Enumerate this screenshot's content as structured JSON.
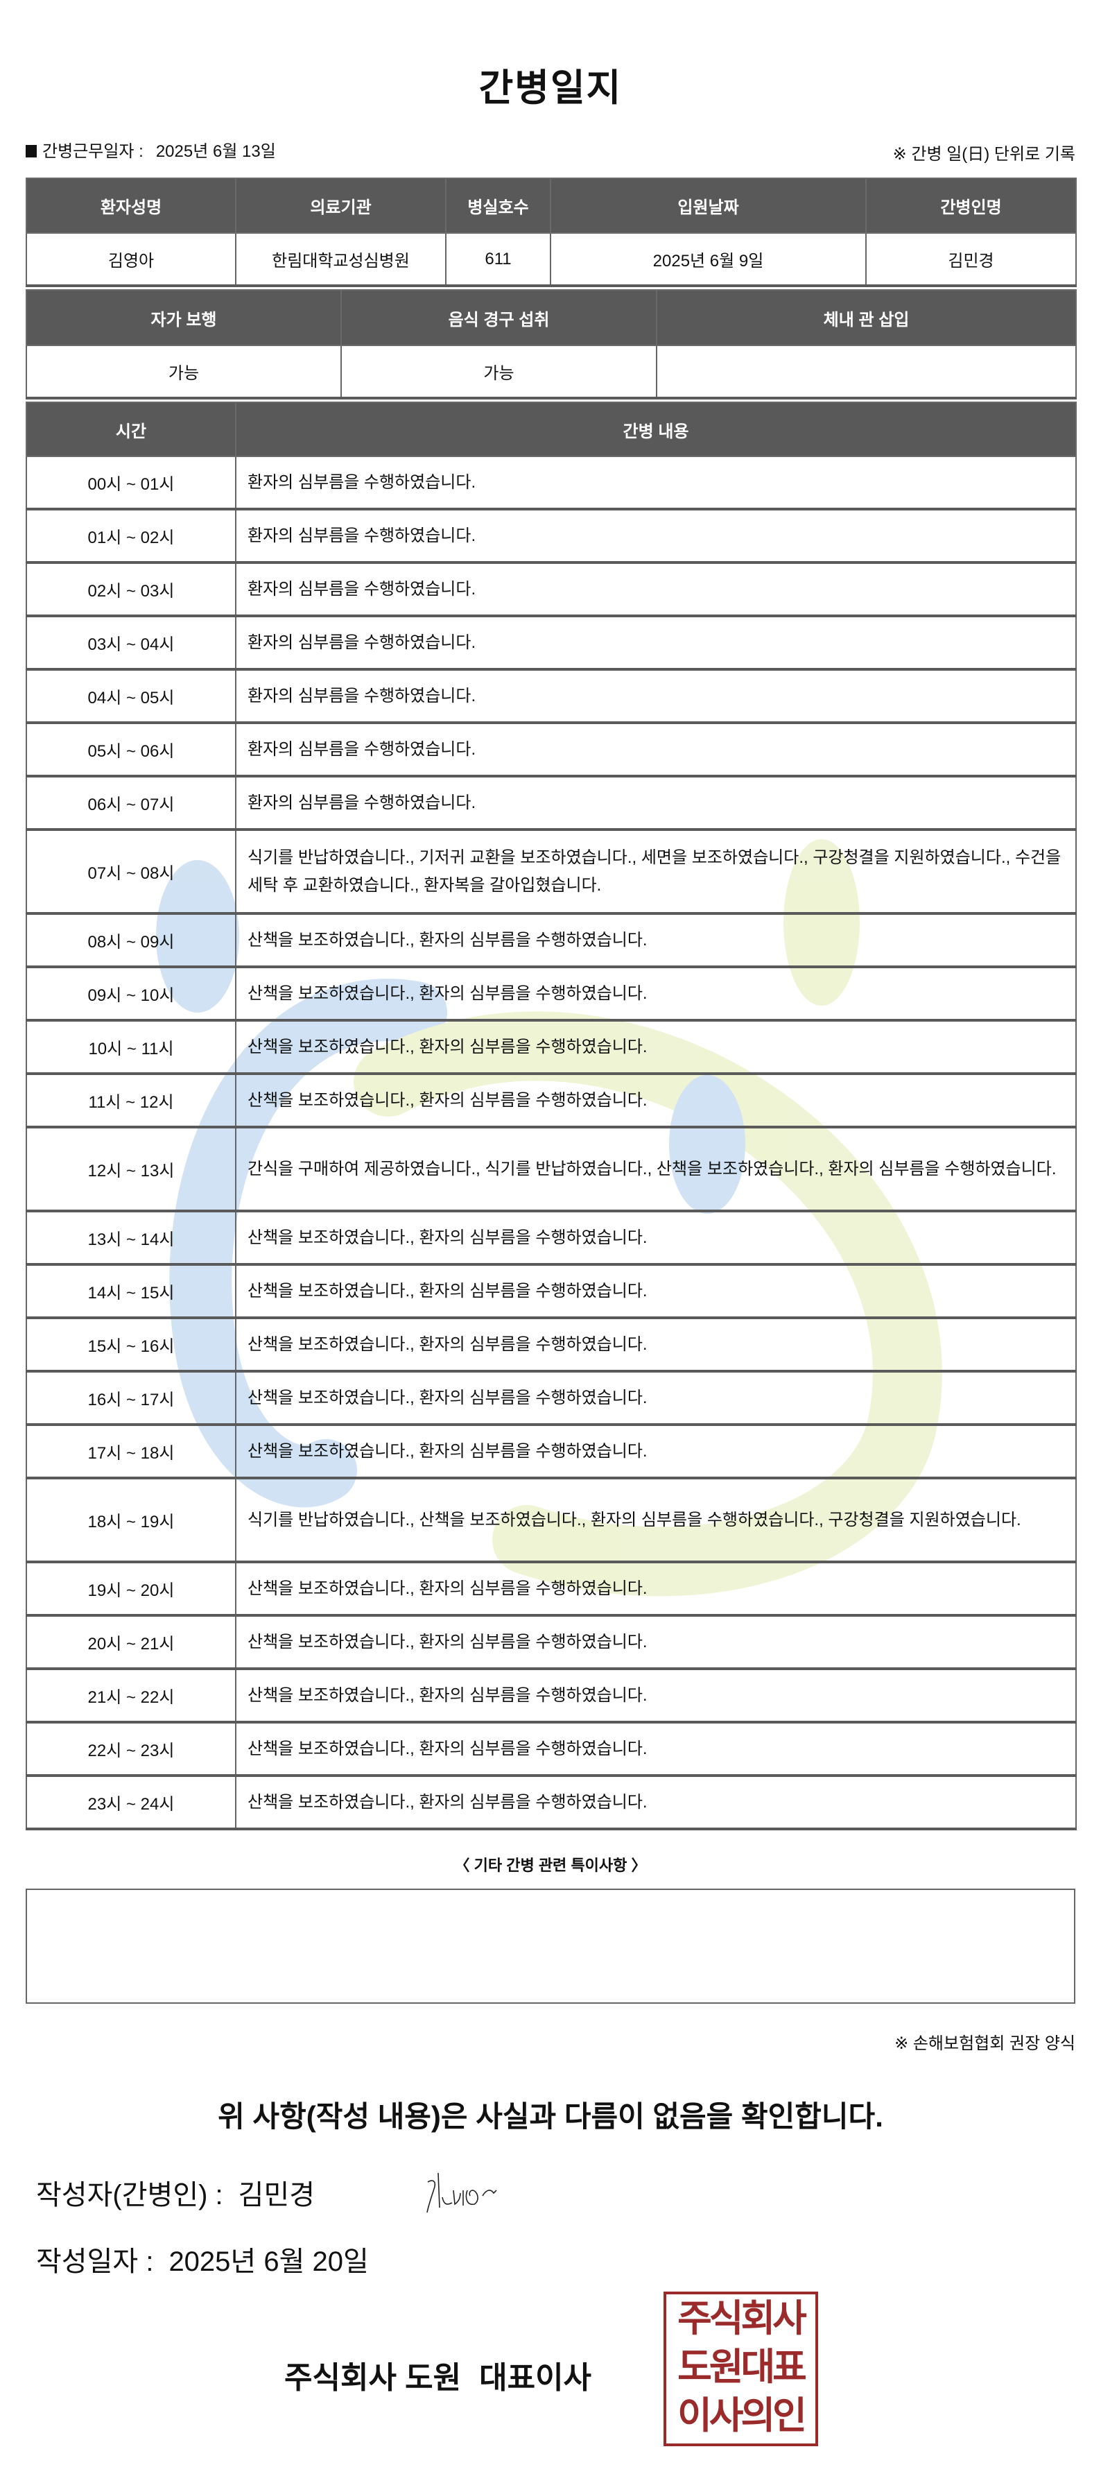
{
  "title": "간병일지",
  "work_date": {
    "label": "간병근무일자 :",
    "value": "2025년 6월 13일"
  },
  "unit_note": "※ 간병 일(日) 단위로 기록",
  "patient_info": {
    "headers": [
      "환자성명",
      "의료기관",
      "병실호수",
      "입원날짜",
      "간병인명"
    ],
    "values": [
      "김영아",
      "한림대학교성심병원",
      "611",
      "2025년 6월 9일",
      "김민경"
    ]
  },
  "status_info": {
    "headers": [
      "자가 보행",
      "음식 경구 섭취",
      "체내 관 삽입"
    ],
    "values": [
      "가능",
      "가능",
      ""
    ]
  },
  "log": {
    "headers": [
      "시간",
      "간병 내용"
    ],
    "rows": [
      {
        "time": "00시 ~ 01시",
        "content": "환자의 심부름을 수행하였습니다."
      },
      {
        "time": "01시 ~ 02시",
        "content": "환자의 심부름을 수행하였습니다."
      },
      {
        "time": "02시 ~ 03시",
        "content": "환자의 심부름을 수행하였습니다."
      },
      {
        "time": "03시 ~ 04시",
        "content": "환자의 심부름을 수행하였습니다."
      },
      {
        "time": "04시 ~ 05시",
        "content": "환자의 심부름을 수행하였습니다."
      },
      {
        "time": "05시 ~ 06시",
        "content": "환자의 심부름을 수행하였습니다."
      },
      {
        "time": "06시 ~ 07시",
        "content": "환자의 심부름을 수행하였습니다."
      },
      {
        "time": "07시 ~ 08시",
        "content": "식기를 반납하였습니다., 기저귀 교환을 보조하였습니다., 세면을 보조하였습니다., 구강청결을 지원하였습니다., 수건을 세탁 후 교환하였습니다., 환자복을 갈아입혔습니다."
      },
      {
        "time": "08시 ~ 09시",
        "content": "산책을 보조하였습니다., 환자의 심부름을 수행하였습니다."
      },
      {
        "time": "09시 ~ 10시",
        "content": "산책을 보조하였습니다., 환자의 심부름을 수행하였습니다."
      },
      {
        "time": "10시 ~ 11시",
        "content": "산책을 보조하였습니다., 환자의 심부름을 수행하였습니다."
      },
      {
        "time": "11시 ~ 12시",
        "content": "산책을 보조하였습니다., 환자의 심부름을 수행하였습니다."
      },
      {
        "time": "12시 ~ 13시",
        "content": "간식을 구매하여 제공하였습니다., 식기를 반납하였습니다., 산책을 보조하였습니다., 환자의 심부름을 수행하였습니다."
      },
      {
        "time": "13시 ~ 14시",
        "content": "산책을 보조하였습니다., 환자의 심부름을 수행하였습니다."
      },
      {
        "time": "14시 ~ 15시",
        "content": "산책을 보조하였습니다., 환자의 심부름을 수행하였습니다."
      },
      {
        "time": "15시 ~ 16시",
        "content": "산책을 보조하였습니다., 환자의 심부름을 수행하였습니다."
      },
      {
        "time": "16시 ~ 17시",
        "content": "산책을 보조하였습니다., 환자의 심부름을 수행하였습니다."
      },
      {
        "time": "17시 ~ 18시",
        "content": "산책을 보조하였습니다., 환자의 심부름을 수행하였습니다."
      },
      {
        "time": "18시 ~ 19시",
        "content": "식기를 반납하였습니다., 산책을 보조하였습니다., 환자의 심부름을 수행하였습니다., 구강청결을 지원하였습니다."
      },
      {
        "time": "19시 ~ 20시",
        "content": "산책을 보조하였습니다., 환자의 심부름을 수행하였습니다."
      },
      {
        "time": "20시 ~ 21시",
        "content": "산책을 보조하였습니다., 환자의 심부름을 수행하였습니다."
      },
      {
        "time": "21시 ~ 22시",
        "content": "산책을 보조하였습니다., 환자의 심부름을 수행하였습니다."
      },
      {
        "time": "22시 ~ 23시",
        "content": "산책을 보조하였습니다., 환자의 심부름을 수행하였습니다."
      },
      {
        "time": "23시 ~ 24시",
        "content": "산책을 보조하였습니다., 환자의 심부름을 수행하였습니다."
      }
    ]
  },
  "remarks": {
    "label": "〈 기타 간병 관련 특이사항 〉",
    "value": ""
  },
  "form_note": "※ 손해보험협회 권장 양식",
  "confirmation": "위 사항(작성 내용)은 사실과 다름이 없음을 확인합니다.",
  "writer": {
    "label": "작성자(간병인) :",
    "value": "김민경"
  },
  "write_date": {
    "label": "작성일자 :",
    "value": "2025년 6월 20일"
  },
  "company": {
    "name": "주식회사 도원",
    "title": "대표이사"
  },
  "stamp": {
    "lines": [
      "주식회사",
      "도원대표",
      "이사의인"
    ],
    "color": "#9b2a2a"
  },
  "colors": {
    "header_bg": "#595959",
    "watermark_blue": "#5b9bd5",
    "watermark_green": "#c8d96a"
  }
}
